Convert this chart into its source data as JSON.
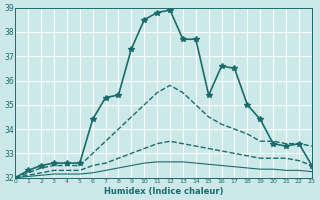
{
  "xlabel": "Humidex (Indice chaleur)",
  "ylabel": "",
  "xlim": [
    0,
    23
  ],
  "ylim": [
    32,
    39
  ],
  "yticks": [
    32,
    33,
    34,
    35,
    36,
    37,
    38,
    39
  ],
  "xticks": [
    0,
    1,
    2,
    3,
    4,
    5,
    6,
    7,
    8,
    9,
    10,
    11,
    12,
    13,
    14,
    15,
    16,
    17,
    18,
    19,
    20,
    21,
    22,
    23
  ],
  "bg_color": "#cce8e8",
  "grid_color": "#ffffff",
  "line_color": "#1a6b6b",
  "lines": [
    {
      "x": [
        0,
        1,
        2,
        3,
        4,
        5,
        6,
        7,
        8,
        9,
        10,
        11,
        12,
        13,
        14,
        15,
        16,
        17,
        18,
        19,
        20,
        21,
        22,
        23
      ],
      "y": [
        32.0,
        32.3,
        32.5,
        32.6,
        32.6,
        32.6,
        34.4,
        35.3,
        35.4,
        37.3,
        38.5,
        38.8,
        38.9,
        37.7,
        37.7,
        35.4,
        36.6,
        36.5,
        35.0,
        34.4,
        33.4,
        33.3,
        33.4,
        32.5
      ],
      "style": "-",
      "marker": "*",
      "markersize": 4,
      "linewidth": 1.2
    },
    {
      "x": [
        0,
        1,
        2,
        3,
        4,
        5,
        6,
        7,
        8,
        9,
        10,
        11,
        12,
        13,
        14,
        15,
        16,
        17,
        18,
        19,
        20,
        21,
        22,
        23
      ],
      "y": [
        32.0,
        32.2,
        32.4,
        32.5,
        32.5,
        32.5,
        33.0,
        33.5,
        34.0,
        34.5,
        35.0,
        35.5,
        35.8,
        35.5,
        35.0,
        34.5,
        34.2,
        34.0,
        33.8,
        33.5,
        33.5,
        33.4,
        33.4,
        33.3
      ],
      "style": "--",
      "marker": null,
      "markersize": 0,
      "linewidth": 1.0
    },
    {
      "x": [
        0,
        1,
        2,
        3,
        4,
        5,
        6,
        7,
        8,
        9,
        10,
        11,
        12,
        13,
        14,
        15,
        16,
        17,
        18,
        19,
        20,
        21,
        22,
        23
      ],
      "y": [
        32.0,
        32.1,
        32.2,
        32.3,
        32.3,
        32.3,
        32.5,
        32.6,
        32.8,
        33.0,
        33.2,
        33.4,
        33.5,
        33.4,
        33.3,
        33.2,
        33.1,
        33.0,
        32.9,
        32.8,
        32.8,
        32.8,
        32.7,
        32.5
      ],
      "style": "--",
      "marker": null,
      "markersize": 0,
      "linewidth": 1.0
    },
    {
      "x": [
        0,
        1,
        2,
        3,
        4,
        5,
        6,
        7,
        8,
        9,
        10,
        11,
        12,
        13,
        14,
        15,
        16,
        17,
        18,
        19,
        20,
        21,
        22,
        23
      ],
      "y": [
        32.0,
        32.05,
        32.1,
        32.15,
        32.15,
        32.15,
        32.2,
        32.3,
        32.4,
        32.5,
        32.6,
        32.65,
        32.65,
        32.65,
        32.6,
        32.55,
        32.5,
        32.45,
        32.4,
        32.35,
        32.35,
        32.3,
        32.3,
        32.25
      ],
      "style": "-",
      "marker": null,
      "markersize": 0,
      "linewidth": 0.8
    }
  ]
}
